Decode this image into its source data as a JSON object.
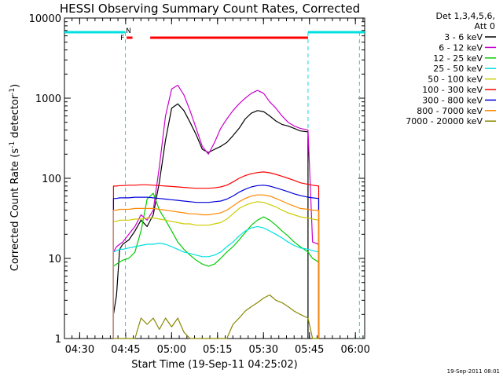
{
  "chart_data": {
    "type": "line",
    "title": "HESSI Observing Summary Count Rates, Corrected",
    "xlabel": "Start Time (19-Sep-11 04:25:02)",
    "ylabel_main": "Corrected Count Rate (s",
    "ylabel_sup1": "-1",
    "ylabel_mid": " detector",
    "ylabel_sup2": "-1",
    "ylabel_end": ")",
    "x_unit": "minutes since 04:25:02",
    "xlim": [
      0,
      98
    ],
    "ylim": [
      1,
      10000
    ],
    "y_scale": "log",
    "grid": false,
    "x_ticks": [
      {
        "x": 4.97,
        "label": "04:30"
      },
      {
        "x": 19.97,
        "label": "04:45"
      },
      {
        "x": 34.97,
        "label": "05:00"
      },
      {
        "x": 49.97,
        "label": "05:15"
      },
      {
        "x": 64.97,
        "label": "05:30"
      },
      {
        "x": 79.97,
        "label": "05:45"
      },
      {
        "x": 94.97,
        "label": "06:00"
      }
    ],
    "y_ticks": [
      {
        "y": 1,
        "label": "1"
      },
      {
        "y": 10,
        "label": "10"
      },
      {
        "y": 100,
        "label": "100"
      },
      {
        "y": 1000,
        "label": "1000"
      },
      {
        "y": 10000,
        "label": "10000"
      }
    ],
    "legend": {
      "placement": "right",
      "header_lines": [
        "Det 1,3,4,5,6,",
        "Att 0"
      ]
    },
    "series": [
      {
        "name": "3 - 6 keV",
        "color": "#000000",
        "x": [
          16,
          17,
          18,
          19,
          21,
          23,
          25,
          27,
          29,
          31,
          33,
          35,
          37,
          39,
          41,
          43,
          45,
          47,
          49,
          51,
          53,
          55,
          57,
          59,
          61,
          63,
          65,
          67,
          69,
          71,
          73,
          75,
          77,
          79.5
        ],
        "y": [
          2,
          3.5,
          13,
          15,
          17,
          22,
          30,
          25,
          35,
          90,
          300,
          750,
          850,
          700,
          500,
          350,
          230,
          210,
          230,
          250,
          280,
          340,
          420,
          550,
          650,
          700,
          680,
          600,
          520,
          470,
          450,
          420,
          390,
          380
        ]
      },
      {
        "name": "6 - 12 keV",
        "color": "#cc00cc",
        "x": [
          16,
          17,
          18,
          19,
          21,
          23,
          25,
          27,
          29,
          31,
          33,
          35,
          37,
          39,
          41,
          43,
          45,
          47,
          49,
          51,
          53,
          55,
          57,
          59,
          61,
          63,
          65,
          67,
          69,
          71,
          73,
          75,
          77,
          79.5,
          81,
          83
        ],
        "y": [
          12,
          14,
          15,
          16,
          20,
          25,
          35,
          30,
          40,
          140,
          600,
          1300,
          1450,
          1100,
          700,
          420,
          250,
          200,
          280,
          420,
          550,
          700,
          850,
          1000,
          1150,
          1250,
          1150,
          900,
          750,
          600,
          500,
          450,
          420,
          400,
          16,
          15
        ]
      },
      {
        "name": "12 - 25 keV",
        "color": "#00cc00",
        "x": [
          16,
          17,
          18,
          19,
          21,
          23,
          25,
          27,
          29,
          31,
          33,
          35,
          37,
          39,
          41,
          43,
          45,
          47,
          49,
          51,
          53,
          55,
          57,
          59,
          61,
          63,
          65,
          67,
          69,
          71,
          73,
          75,
          77,
          79.5,
          81,
          83
        ],
        "y": [
          8,
          8.5,
          9,
          9.5,
          10,
          12,
          22,
          55,
          65,
          40,
          30,
          22,
          16,
          13,
          11,
          9.5,
          8.5,
          8,
          8.5,
          10,
          12,
          14,
          17,
          21,
          26,
          30,
          33,
          30,
          26,
          22,
          19,
          16,
          14,
          12,
          10,
          9
        ]
      },
      {
        "name": "25 - 50 keV",
        "color": "#00e0e0",
        "x": [
          16,
          17,
          18,
          19,
          21,
          23,
          25,
          27,
          29,
          31,
          33,
          35,
          37,
          39,
          41,
          43,
          45,
          47,
          49,
          51,
          53,
          55,
          57,
          59,
          61,
          63,
          65,
          67,
          69,
          71,
          73,
          75,
          77,
          79.5,
          81,
          83
        ],
        "y": [
          12,
          12.5,
          13,
          13,
          13.5,
          14,
          14.5,
          15,
          15,
          15.5,
          15,
          14,
          13,
          12,
          11.5,
          11,
          10.5,
          10.5,
          11,
          12,
          14,
          16,
          19,
          22,
          24,
          25,
          24,
          22,
          20,
          18,
          16,
          14.5,
          13.5,
          13,
          12.5,
          12
        ]
      },
      {
        "name": "50 - 100 keV",
        "color": "#cccc00",
        "x": [
          16,
          17,
          18,
          19,
          21,
          23,
          25,
          27,
          29,
          31,
          33,
          35,
          37,
          39,
          41,
          43,
          45,
          47,
          49,
          51,
          53,
          55,
          57,
          59,
          61,
          63,
          65,
          67,
          69,
          71,
          73,
          75,
          77,
          79.5,
          81,
          83
        ],
        "y": [
          29,
          29,
          30,
          30,
          30,
          31,
          31,
          32,
          32,
          31,
          30,
          29,
          28,
          27,
          27,
          26,
          26,
          26,
          27,
          28,
          31,
          36,
          42,
          46,
          49,
          51,
          50,
          47,
          44,
          40,
          37,
          35,
          33,
          32,
          31,
          30
        ]
      },
      {
        "name": "100 - 300 keV",
        "color": "#ff0000",
        "x": [
          16,
          17,
          18,
          19,
          21,
          23,
          25,
          27,
          29,
          31,
          33,
          35,
          37,
          39,
          41,
          43,
          45,
          47,
          49,
          51,
          53,
          55,
          57,
          59,
          61,
          63,
          65,
          67,
          69,
          71,
          73,
          75,
          77,
          79.5,
          81,
          83
        ],
        "y": [
          80,
          80,
          81,
          81,
          82,
          82,
          83,
          83,
          82,
          81,
          80,
          79,
          78,
          77,
          76,
          75,
          75,
          75,
          76,
          78,
          82,
          90,
          100,
          108,
          114,
          118,
          120,
          117,
          112,
          106,
          100,
          94,
          88,
          84,
          82,
          80
        ]
      },
      {
        "name": "300 - 800 keV",
        "color": "#0000dd",
        "x": [
          16,
          17,
          18,
          19,
          21,
          23,
          25,
          27,
          29,
          31,
          33,
          35,
          37,
          39,
          41,
          43,
          45,
          47,
          49,
          51,
          53,
          55,
          57,
          59,
          61,
          63,
          65,
          67,
          69,
          71,
          73,
          75,
          77,
          79.5,
          81,
          83
        ],
        "y": [
          56,
          56,
          57,
          57,
          57,
          58,
          58,
          58,
          57,
          56,
          55,
          54,
          53,
          52,
          51,
          50,
          50,
          50,
          51,
          52,
          55,
          60,
          67,
          73,
          78,
          81,
          82,
          80,
          76,
          72,
          68,
          64,
          61,
          58,
          57,
          56
        ]
      },
      {
        "name": "800 - 7000 keV",
        "color": "#ff8800",
        "x": [
          16,
          17,
          18,
          19,
          21,
          23,
          25,
          27,
          29,
          31,
          33,
          35,
          37,
          39,
          41,
          43,
          45,
          47,
          49,
          51,
          53,
          55,
          57,
          59,
          61,
          63,
          65,
          67,
          69,
          71,
          73,
          75,
          77,
          79.5,
          81,
          83
        ],
        "y": [
          40,
          40,
          41,
          41,
          41,
          42,
          42,
          42,
          42,
          41,
          40,
          39,
          38,
          37,
          36,
          36,
          35,
          35,
          36,
          37,
          40,
          45,
          51,
          56,
          60,
          62,
          62,
          60,
          56,
          52,
          48,
          45,
          42,
          41,
          40,
          40
        ]
      },
      {
        "name": "7000 - 20000 keV",
        "color": "#888800",
        "x": [
          16,
          17,
          18,
          19,
          21,
          23,
          25,
          27,
          29,
          31,
          33,
          35,
          37,
          39,
          41,
          43,
          45,
          47,
          49,
          51,
          53,
          55,
          57,
          59,
          61,
          63,
          65,
          67,
          69,
          71,
          73,
          75,
          77,
          79.5,
          81,
          83
        ],
        "y": [
          1,
          1,
          1,
          1,
          1,
          1,
          1.8,
          1.5,
          1.8,
          1.3,
          1.8,
          1.4,
          1.8,
          1.2,
          1,
          1,
          1,
          1,
          1,
          1,
          1,
          1.5,
          1.8,
          2.2,
          2.5,
          2.8,
          3.2,
          3.5,
          3,
          2.8,
          2.5,
          2.2,
          2,
          1.8,
          1,
          1
        ]
      }
    ],
    "attenuator_bars": [
      {
        "x_start": 0,
        "x_end": 19.9
      },
      {
        "x_start": 79.5,
        "x_end": 98
      }
    ],
    "attenuator_dashes": [
      19.9,
      79.5,
      96.3
    ],
    "eclipse_marks": {
      "F": {
        "x": 18.9,
        "label": "F"
      },
      "N": {
        "x": 20.9,
        "label": "N"
      },
      "segments": [
        {
          "x_start": 20.3,
          "x_end": 22.2
        },
        {
          "x_start": 28.0,
          "x_end": 79.5
        }
      ]
    },
    "timestamp": "19-Sep-2011 08:01"
  }
}
